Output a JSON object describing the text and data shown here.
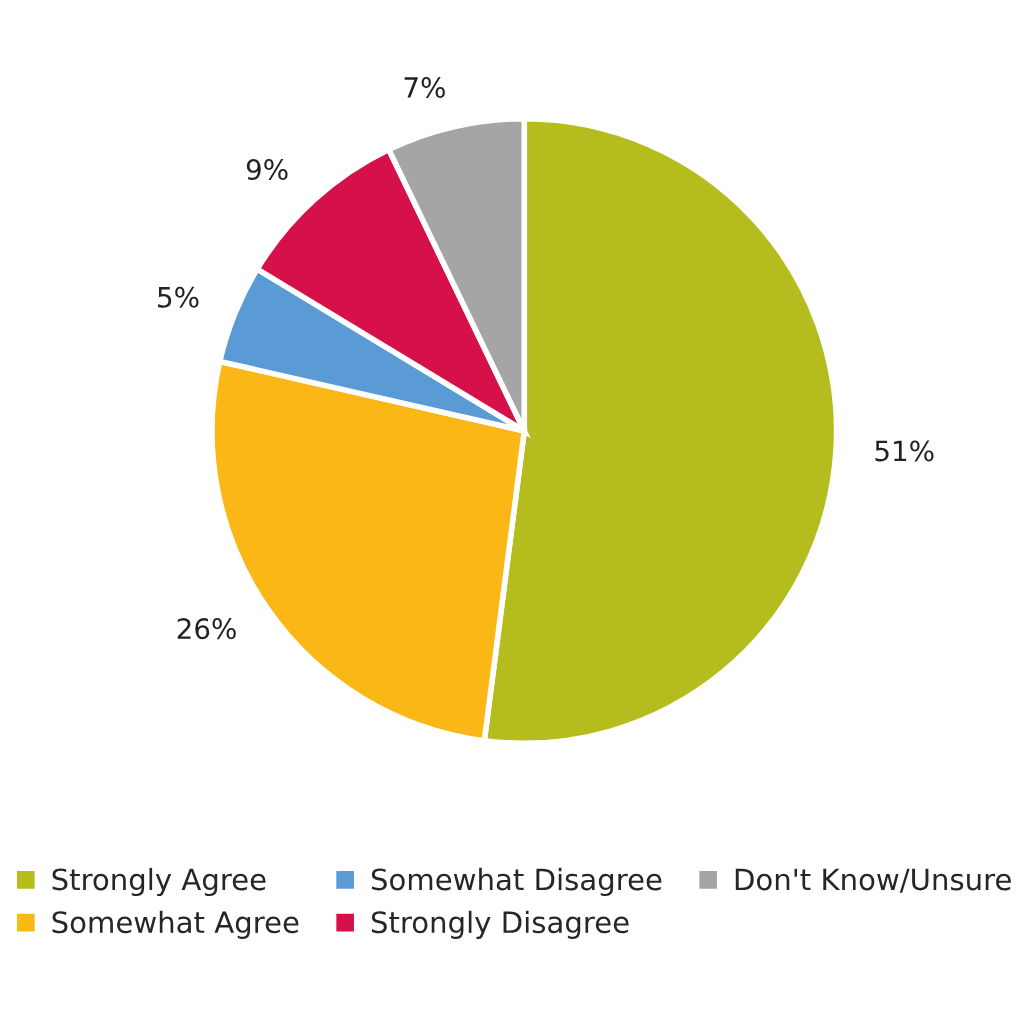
{
  "chart_data": {
    "type": "pie",
    "categories": [
      "Strongly Agree",
      "Somewhat Agree",
      "Somewhat Disagree",
      "Strongly Disagree",
      "Don't Know/Unsure"
    ],
    "values": [
      51,
      26,
      5,
      9,
      7
    ],
    "value_labels": [
      "51%",
      "26%",
      "5%",
      "9%",
      "7%"
    ],
    "colors": [
      "#b5bd1e",
      "#fbb715",
      "#5b9bd5",
      "#d6114a",
      "#a5a5a5"
    ],
    "legend": "bottom"
  }
}
